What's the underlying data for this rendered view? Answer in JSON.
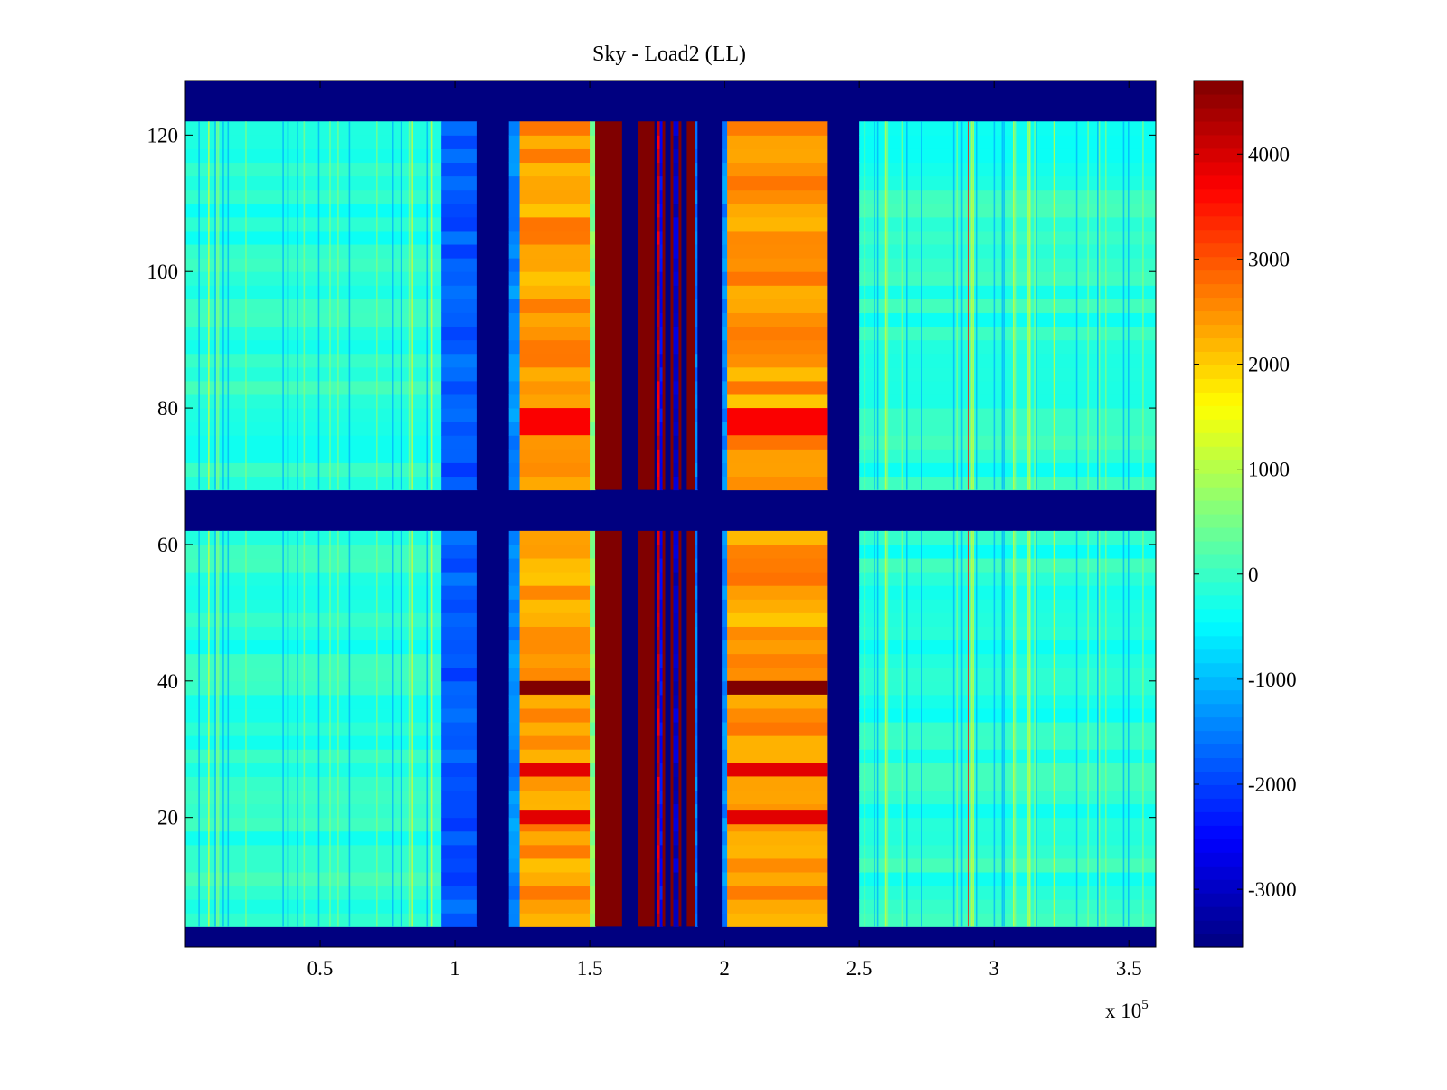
{
  "chart_data": {
    "type": "heatmap",
    "title": "Sky - Load2 (LL)",
    "xlabel": "",
    "ylabel": "",
    "x_multiplier_label": "x 10",
    "x_multiplier_exponent": "5",
    "xlim": [
      0,
      3.6
    ],
    "ylim": [
      1,
      128
    ],
    "x_ticks": [
      0.5,
      1,
      1.5,
      2,
      2.5,
      3,
      3.5
    ],
    "x_tick_labels": [
      "0.5",
      "1",
      "1.5",
      "2",
      "2.5",
      "3",
      "3.5"
    ],
    "y_ticks": [
      20,
      40,
      60,
      80,
      100,
      120
    ],
    "y_tick_labels": [
      "20",
      "40",
      "60",
      "80",
      "100",
      "120"
    ],
    "colorbar": {
      "colormap": "jet",
      "range": [
        -3550,
        4700
      ],
      "ticks": [
        -3000,
        -2000,
        -1000,
        0,
        1000,
        2000,
        3000,
        4000
      ],
      "tick_labels": [
        "-3000",
        "-2000",
        "-1000",
        "0",
        "1000",
        "2000",
        "3000",
        "4000"
      ]
    },
    "blank_rows": [
      [
        1,
        4
      ],
      [
        62,
        68
      ],
      [
        122,
        128
      ]
    ],
    "column_bands": [
      {
        "x": [
          0.0,
          0.95
        ],
        "value": -150
      },
      {
        "x": [
          0.95,
          1.08
        ],
        "value": -1800
      },
      {
        "x": [
          1.08,
          1.2
        ],
        "value": -3550
      },
      {
        "x": [
          1.2,
          1.24
        ],
        "value": -1400
      },
      {
        "x": [
          1.24,
          1.5
        ],
        "value": 2400
      },
      {
        "x": [
          1.5,
          1.52
        ],
        "value": 600
      },
      {
        "x": [
          1.52,
          1.62
        ],
        "value": 4700
      },
      {
        "x": [
          1.62,
          1.68
        ],
        "value": -3550
      },
      {
        "x": [
          1.68,
          1.74
        ],
        "value": 4700
      },
      {
        "x": [
          1.74,
          1.75
        ],
        "value": -3550
      },
      {
        "x": [
          1.75,
          1.76
        ],
        "value": 4000
      },
      {
        "x": [
          1.76,
          1.77
        ],
        "value": -2500
      },
      {
        "x": [
          1.77,
          1.78
        ],
        "value": 4700
      },
      {
        "x": [
          1.78,
          1.8
        ],
        "value": -3550
      },
      {
        "x": [
          1.8,
          1.81
        ],
        "value": 4700
      },
      {
        "x": [
          1.81,
          1.83
        ],
        "value": -3000
      },
      {
        "x": [
          1.83,
          1.84
        ],
        "value": 4700
      },
      {
        "x": [
          1.84,
          1.86
        ],
        "value": -3550
      },
      {
        "x": [
          1.86,
          1.89
        ],
        "value": 4700
      },
      {
        "x": [
          1.89,
          1.9
        ],
        "value": -1500
      },
      {
        "x": [
          1.9,
          1.99
        ],
        "value": -3550
      },
      {
        "x": [
          1.99,
          2.01
        ],
        "value": -1400
      },
      {
        "x": [
          2.01,
          2.38
        ],
        "value": 2400
      },
      {
        "x": [
          2.38,
          2.5
        ],
        "value": -3550
      },
      {
        "x": [
          2.5,
          3.6
        ],
        "value": -150
      }
    ],
    "highlight_rows": [
      {
        "y": [
          38,
          40
        ],
        "x": [
          1.24,
          1.5
        ],
        "value": 4700
      },
      {
        "y": [
          38,
          40
        ],
        "x": [
          2.01,
          2.38
        ],
        "value": 4700
      },
      {
        "y": [
          76,
          80
        ],
        "x": [
          1.24,
          1.5
        ],
        "value": 3700
      },
      {
        "y": [
          76,
          80
        ],
        "x": [
          2.01,
          2.38
        ],
        "value": 3700
      },
      {
        "y": [
          26,
          28
        ],
        "x": [
          1.24,
          1.5
        ],
        "value": 3900
      },
      {
        "y": [
          26,
          28
        ],
        "x": [
          2.01,
          2.38
        ],
        "value": 3900
      },
      {
        "y": [
          19,
          21
        ],
        "x": [
          1.24,
          1.5
        ],
        "value": 3900
      },
      {
        "y": [
          19,
          21
        ],
        "x": [
          2.01,
          2.38
        ],
        "value": 3900
      }
    ],
    "grid": false,
    "legend": "colorbar-right"
  }
}
